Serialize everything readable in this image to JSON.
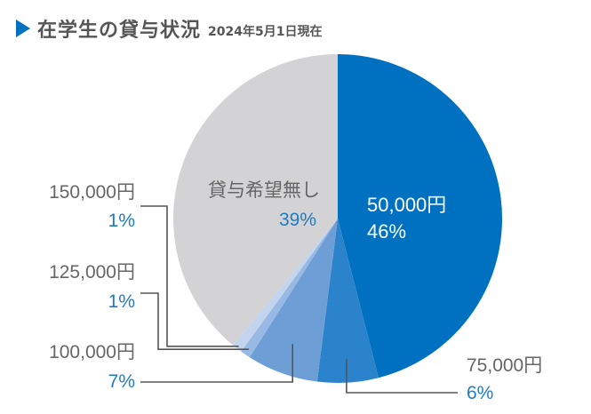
{
  "header": {
    "title": "在学生の貸与状況",
    "subtitle": "2024年5月1日現在"
  },
  "colors": {
    "accent": "#0070c0",
    "label_gray": "#666666",
    "label_blue": "#1f7bc1",
    "leader": "#555555"
  },
  "chart_data": {
    "type": "pie",
    "title": "在学生の貸与状況",
    "subtitle": "2024年5月1日現在",
    "slices": [
      {
        "label": "50,000円",
        "pct_label": "46%",
        "value": 46,
        "color": "#0070c0"
      },
      {
        "label": "75,000円",
        "pct_label": "6%",
        "value": 6,
        "color": "#2b83cc"
      },
      {
        "label": "100,000円",
        "pct_label": "7%",
        "value": 7,
        "color": "#6d9ed6"
      },
      {
        "label": "125,000円",
        "pct_label": "1%",
        "value": 1,
        "color": "#98b9e3"
      },
      {
        "label": "150,000円",
        "pct_label": "1%",
        "value": 1,
        "color": "#c2d4ee"
      },
      {
        "label": "貸与希望無し",
        "pct_label": "39%",
        "value": 39,
        "color": "#d3d3d5"
      }
    ]
  }
}
